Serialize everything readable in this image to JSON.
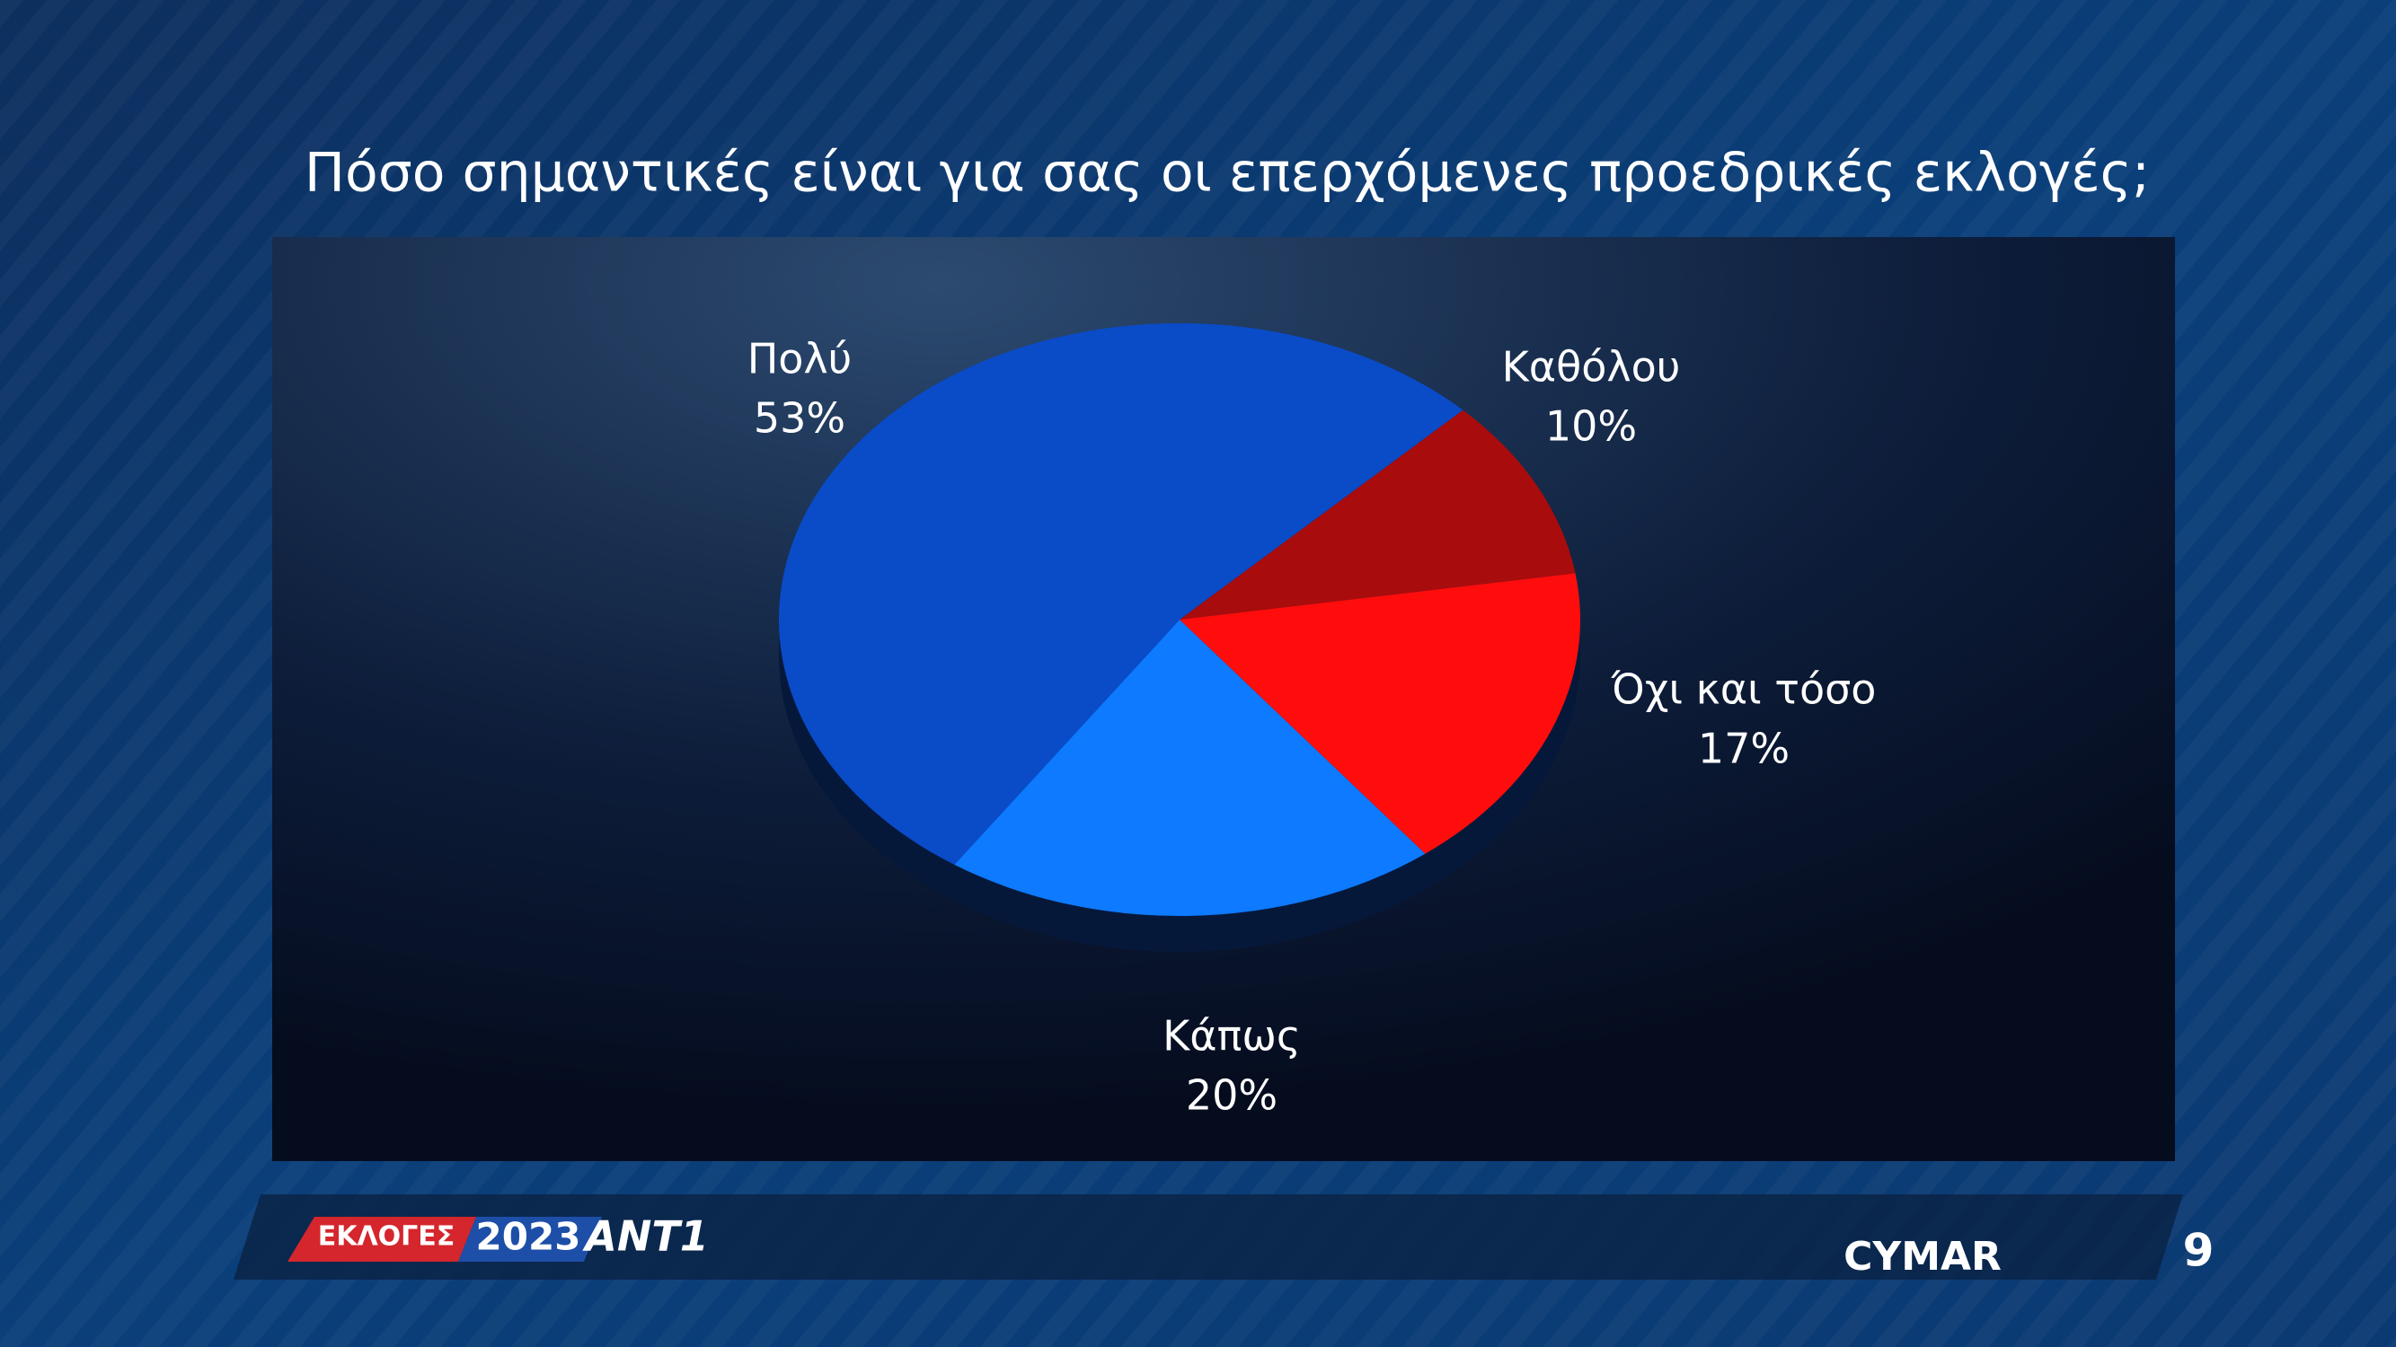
{
  "chart_data": {
    "type": "pie",
    "title": "Πόσο σημαντικές είναι για σας οι επερχόμενες προεδρικές εκλογές;",
    "categories": [
      "Καθόλου",
      "Όχι και τόσο",
      "Κάπως",
      "Πολύ"
    ],
    "values": [
      10,
      17,
      20,
      53
    ],
    "value_labels": [
      "10%",
      "17%",
      "20%",
      "53%"
    ],
    "colors": [
      "#a80c0c",
      "#ff0d0d",
      "#0d7aff",
      "#0a4bc8"
    ]
  },
  "footer": {
    "election_label": "ΕΚΛΟΓΕΣ",
    "year": "2023",
    "channel": "ANT1",
    "pollster": "CYMAR",
    "page_number": "9"
  }
}
